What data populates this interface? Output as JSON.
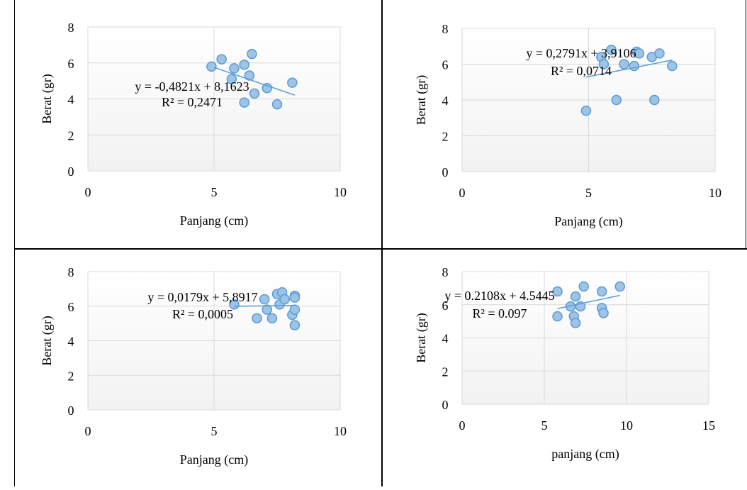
{
  "colors": {
    "marker_fill": "#9dc3e6",
    "marker_stroke": "#5b9bd5",
    "trendline": "#5b9bd5",
    "grid": "#d9d9d9",
    "plot_bg_top": "#ffffff",
    "plot_bg_bottom": "#f2f2f2"
  },
  "chart_data": [
    {
      "type": "scatter",
      "xlabel": "Panjang (cm)",
      "ylabel": "Berat (gr)",
      "xlim": [
        0,
        10
      ],
      "ylim": [
        0,
        8
      ],
      "xticks": [
        "0",
        "5",
        "10"
      ],
      "yticks": [
        "0",
        "2",
        "4",
        "6",
        "8"
      ],
      "grid": true,
      "points": [
        [
          4.9,
          5.8
        ],
        [
          5.3,
          6.2
        ],
        [
          5.7,
          5.1
        ],
        [
          5.8,
          5.7
        ],
        [
          6.2,
          5.9
        ],
        [
          6.2,
          3.8
        ],
        [
          6.4,
          5.3
        ],
        [
          6.5,
          6.5
        ],
        [
          6.6,
          4.3
        ],
        [
          7.1,
          4.6
        ],
        [
          7.5,
          3.7
        ],
        [
          8.1,
          4.9
        ]
      ],
      "trendline": {
        "slope": -0.4821,
        "intercept": 8.1623,
        "x_range": [
          5.0,
          8.2
        ]
      },
      "equation": "y = -0,4821x + 8,1623",
      "r2": "R² = 0,2471"
    },
    {
      "type": "scatter",
      "xlabel": "Panjang (cm)",
      "ylabel": "Berat (gr)",
      "xlim": [
        0,
        10
      ],
      "ylim": [
        0,
        8
      ],
      "xticks": [
        "0",
        "5",
        "10"
      ],
      "yticks": [
        "0",
        "2",
        "4",
        "6",
        "8"
      ],
      "grid": true,
      "points": [
        [
          4.9,
          3.4
        ],
        [
          5.5,
          6.4
        ],
        [
          5.6,
          6.0
        ],
        [
          5.9,
          6.8
        ],
        [
          6.4,
          6.0
        ],
        [
          6.8,
          5.9
        ],
        [
          6.9,
          6.7
        ],
        [
          7.0,
          6.6
        ],
        [
          7.5,
          6.4
        ],
        [
          7.6,
          4.0
        ],
        [
          7.8,
          6.6
        ],
        [
          8.3,
          5.9
        ],
        [
          6.1,
          4.0
        ]
      ],
      "trendline": {
        "slope": 0.2791,
        "intercept": 3.9106,
        "x_range": [
          4.9,
          8.3
        ]
      },
      "equation": "y = 0,2791x + 3,9106",
      "r2": "R² = 0,0714"
    },
    {
      "type": "scatter",
      "xlabel": "Panjang (cm)",
      "ylabel": "Berat (gr)",
      "xlim": [
        0,
        10
      ],
      "ylim": [
        0,
        8
      ],
      "xticks": [
        "0",
        "5",
        "10"
      ],
      "yticks": [
        "0",
        "2",
        "4",
        "6",
        "8"
      ],
      "grid": true,
      "points": [
        [
          5.8,
          6.1
        ],
        [
          6.7,
          5.3
        ],
        [
          7.0,
          6.4
        ],
        [
          7.1,
          5.8
        ],
        [
          7.3,
          5.3
        ],
        [
          7.5,
          6.7
        ],
        [
          7.6,
          6.1
        ],
        [
          7.7,
          6.8
        ],
        [
          7.8,
          6.4
        ],
        [
          8.1,
          5.5
        ],
        [
          8.2,
          6.6
        ],
        [
          8.2,
          6.5
        ],
        [
          8.2,
          5.8
        ],
        [
          8.2,
          4.9
        ]
      ],
      "trendline": {
        "slope": 0.0179,
        "intercept": 5.8917,
        "x_range": [
          5.8,
          8.2
        ]
      },
      "equation": "y = 0,0179x + 5,8917",
      "r2": "R² = 0,0005"
    },
    {
      "type": "scatter",
      "xlabel": "panjang (cm)",
      "ylabel": "Berat (gr)",
      "xlim": [
        0,
        15
      ],
      "ylim": [
        0,
        8
      ],
      "xticks": [
        "0",
        "5",
        "10",
        "15"
      ],
      "yticks": [
        "0",
        "2",
        "4",
        "6",
        "8"
      ],
      "grid": true,
      "points": [
        [
          5.8,
          6.8
        ],
        [
          5.8,
          5.3
        ],
        [
          6.6,
          5.9
        ],
        [
          6.8,
          5.3
        ],
        [
          6.9,
          4.9
        ],
        [
          6.9,
          6.5
        ],
        [
          7.2,
          5.9
        ],
        [
          7.4,
          7.1
        ],
        [
          8.5,
          6.8
        ],
        [
          8.5,
          5.8
        ],
        [
          8.6,
          5.5
        ],
        [
          9.6,
          7.1
        ]
      ],
      "trendline": {
        "slope": 0.2108,
        "intercept": 4.5445,
        "x_range": [
          5.8,
          9.6
        ]
      },
      "equation": "y = 0.2108x + 4.5445",
      "r2": "R² = 0.097"
    }
  ]
}
